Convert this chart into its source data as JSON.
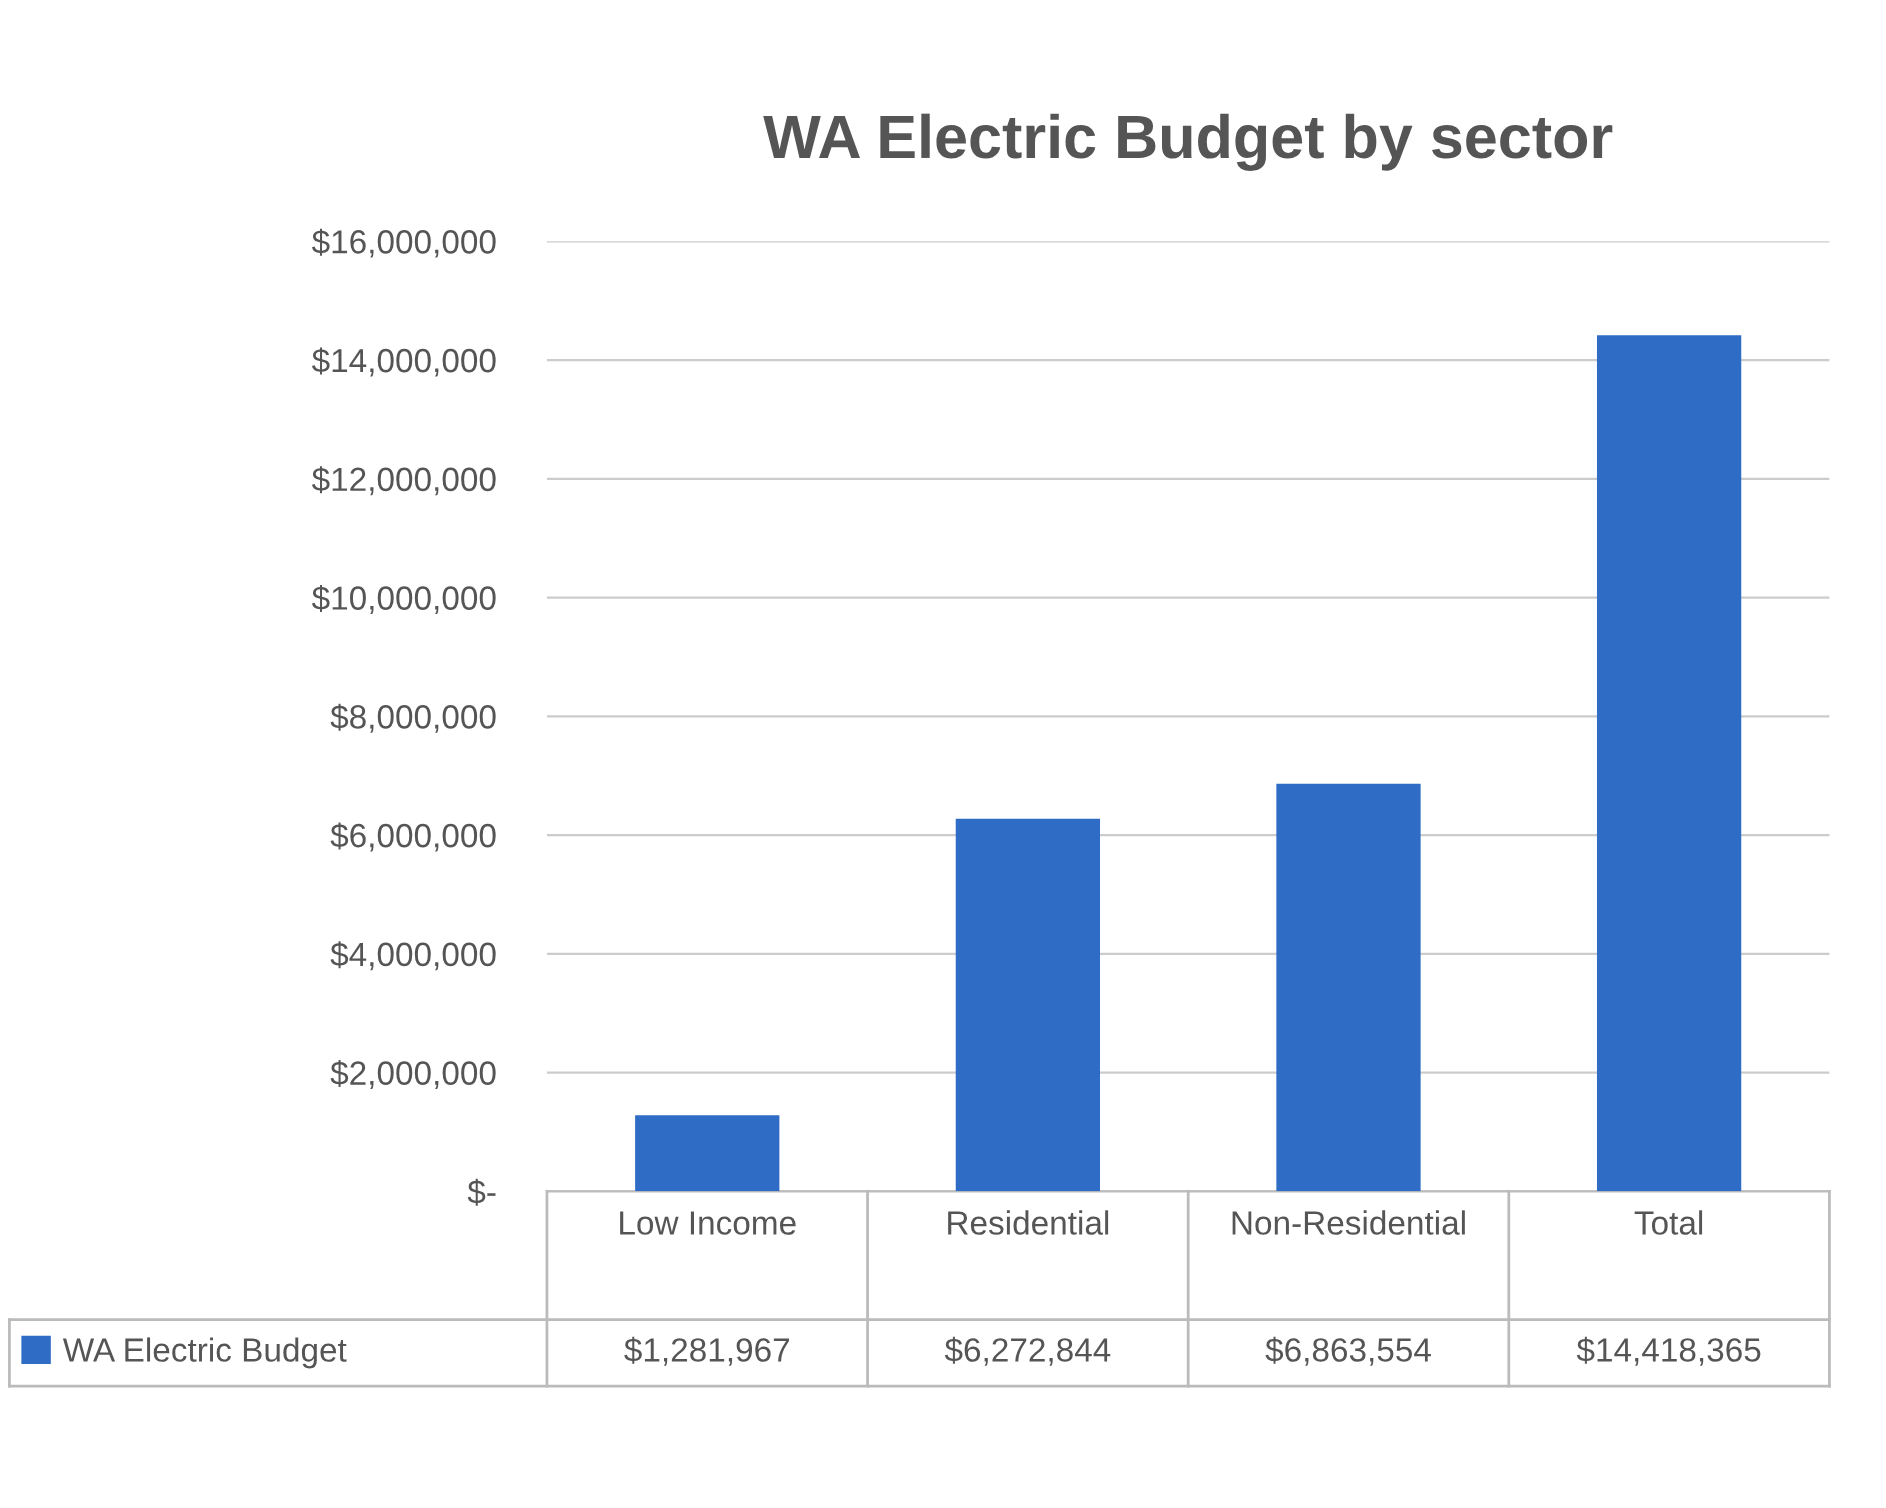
{
  "chart_data": {
    "type": "bar",
    "title": "WA Electric Budget by sector",
    "categories": [
      "Low Income",
      "Residential",
      "Non-Residential",
      "Total"
    ],
    "series": [
      {
        "name": "WA Electric Budget",
        "color": "#2f6cc6",
        "values": [
          1281967,
          6272844,
          6863554,
          14418365
        ],
        "value_labels": [
          "$1,281,967",
          "$6,272,844",
          "$6,863,554",
          "$14,418,365"
        ]
      }
    ],
    "ylim": [
      0,
      16000000
    ],
    "yticks": [
      {
        "value": 0,
        "label": "$-"
      },
      {
        "value": 2000000,
        "label": "$2,000,000"
      },
      {
        "value": 4000000,
        "label": "$4,000,000"
      },
      {
        "value": 6000000,
        "label": "$6,000,000"
      },
      {
        "value": 8000000,
        "label": "$8,000,000"
      },
      {
        "value": 10000000,
        "label": "$10,000,000"
      },
      {
        "value": 12000000,
        "label": "$12,000,000"
      },
      {
        "value": 14000000,
        "label": "$14,000,000"
      },
      {
        "value": 16000000,
        "label": "$16,000,000"
      }
    ],
    "grid": "y",
    "legend": "bottom"
  }
}
